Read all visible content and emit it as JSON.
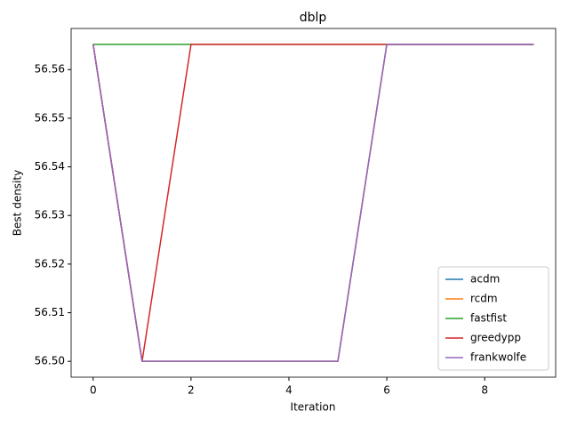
{
  "chart_data": {
    "type": "line",
    "title": "dblp",
    "x_label": "Iteration",
    "y_label": "Best density",
    "x": [
      0,
      1,
      2,
      3,
      4,
      5,
      6,
      7,
      8,
      9
    ],
    "series": [
      {
        "name": "acdm",
        "color": "#1f77b4",
        "values": [
          56.5652,
          56.5,
          56.5,
          56.5,
          56.5,
          56.5,
          56.5652,
          56.5652,
          56.5652,
          56.5652
        ]
      },
      {
        "name": "rcdm",
        "color": "#ff7f0e",
        "values": [
          56.5652,
          56.5,
          56.5,
          56.5,
          56.5,
          56.5,
          56.5652,
          56.5652,
          56.5652,
          56.5652
        ]
      },
      {
        "name": "fastfist",
        "color": "#2ca02c",
        "values": [
          56.5652,
          56.5652,
          56.5652,
          56.5652,
          56.5652,
          56.5652,
          56.5652,
          56.5652,
          56.5652,
          56.5652
        ]
      },
      {
        "name": "greedypp",
        "color": "#d62728",
        "values": [
          56.5652,
          56.5,
          56.5652,
          56.5652,
          56.5652,
          56.5652,
          56.5652,
          56.5652,
          56.5652,
          56.5652
        ]
      },
      {
        "name": "frankwolfe",
        "color": "#9467bd",
        "values": [
          56.5652,
          56.5,
          56.5,
          56.5,
          56.5,
          56.5,
          56.5652,
          56.5652,
          56.5652,
          56.5652
        ]
      }
    ],
    "xlim": [
      -0.45,
      9.45
    ],
    "xticks": [
      0,
      2,
      4,
      6,
      8
    ],
    "ylim": [
      56.49674,
      56.56846
    ],
    "yticks": [
      {
        "value": 56.5,
        "label": "56.50"
      },
      56.51,
      56.52,
      56.53,
      56.54,
      56.55,
      56.56
    ],
    "legend": "lower right"
  }
}
